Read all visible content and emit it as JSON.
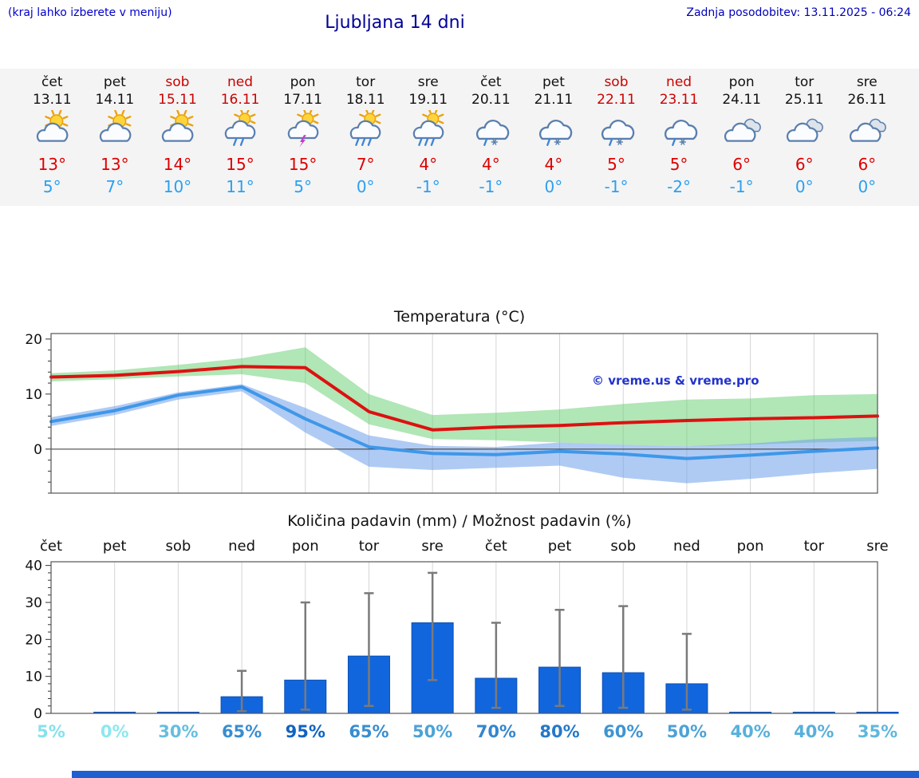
{
  "header": {
    "left_note": "(kraj lahko izberete v meniju)",
    "title": "Ljubljana 14 dni",
    "last_update": "Zadnja posodobitev: 13.11.2025 - 06:24"
  },
  "colors": {
    "header_blue": "#0000cc",
    "title_blue": "#000099",
    "weekend_red": "#cc0000",
    "tmax_red": "#dd0000",
    "tmin_blue": "#2aa0f0",
    "strip_bg": "#f4f4f4",
    "band_max_green": "rgba(100,205,110,0.50)",
    "band_min_blue": "rgba(110,160,235,0.55)",
    "bar_blue": "#1266dd",
    "bar_edge": "#0b4fb3",
    "whisker_gray": "#7a7a7a",
    "prob_low": "#8ce8ee",
    "prob_high": "#0b5cc0",
    "watermark_blue": "#2233cc",
    "footer_blue": "#1f5fd0"
  },
  "forecast": {
    "days": [
      {
        "name": "čet",
        "date": "13.11",
        "weekend": false,
        "icon": "partly-sunny",
        "tmax": "13°",
        "tmin": "5°"
      },
      {
        "name": "pet",
        "date": "14.11",
        "weekend": false,
        "icon": "partly-sunny",
        "tmax": "13°",
        "tmin": "7°"
      },
      {
        "name": "sob",
        "date": "15.11",
        "weekend": true,
        "icon": "partly-sunny",
        "tmax": "14°",
        "tmin": "10°"
      },
      {
        "name": "ned",
        "date": "16.11",
        "weekend": true,
        "icon": "sun-rain",
        "tmax": "15°",
        "tmin": "11°"
      },
      {
        "name": "pon",
        "date": "17.11",
        "weekend": false,
        "icon": "sun-storm",
        "tmax": "15°",
        "tmin": "5°"
      },
      {
        "name": "tor",
        "date": "18.11",
        "weekend": false,
        "icon": "sun-heavy-rain",
        "tmax": "7°",
        "tmin": "0°"
      },
      {
        "name": "sre",
        "date": "19.11",
        "weekend": false,
        "icon": "sun-heavy-rain",
        "tmax": "4°",
        "tmin": "-1°"
      },
      {
        "name": "čet",
        "date": "20.11",
        "weekend": false,
        "icon": "sleet",
        "tmax": "4°",
        "tmin": "-1°"
      },
      {
        "name": "pet",
        "date": "21.11",
        "weekend": false,
        "icon": "sleet",
        "tmax": "4°",
        "tmin": "0°"
      },
      {
        "name": "sob",
        "date": "22.11",
        "weekend": true,
        "icon": "sleet",
        "tmax": "5°",
        "tmin": "-1°"
      },
      {
        "name": "ned",
        "date": "23.11",
        "weekend": true,
        "icon": "sleet",
        "tmax": "5°",
        "tmin": "-2°"
      },
      {
        "name": "pon",
        "date": "24.11",
        "weekend": false,
        "icon": "cloudy",
        "tmax": "6°",
        "tmin": "-1°"
      },
      {
        "name": "tor",
        "date": "25.11",
        "weekend": false,
        "icon": "cloudy",
        "tmax": "6°",
        "tmin": "0°"
      },
      {
        "name": "sre",
        "date": "26.11",
        "weekend": false,
        "icon": "cloudy",
        "tmax": "6°",
        "tmin": "0°"
      }
    ]
  },
  "chart_data": [
    {
      "type": "line",
      "title": "Temperatura (°C)",
      "categories": [
        "čet",
        "pet",
        "sob",
        "ned",
        "pon",
        "tor",
        "sre",
        "čet",
        "pet",
        "sob",
        "ned",
        "pon",
        "tor",
        "sre"
      ],
      "ylim": [
        -8,
        21
      ],
      "yticks": [
        0,
        10,
        20
      ],
      "grid": "vertical-per-day",
      "watermark": "© vreme.us & vreme.pro",
      "series": [
        {
          "name": "temperatura-max",
          "color": "#dd1111",
          "values": [
            13.1,
            13.4,
            14.1,
            15.0,
            14.8,
            6.8,
            3.5,
            4.0,
            4.3,
            4.8,
            5.2,
            5.5,
            5.7,
            6.0
          ]
        },
        {
          "name": "temperatura-min",
          "color": "#3f97e8",
          "values": [
            5.0,
            7.0,
            9.8,
            11.3,
            5.5,
            0.4,
            -0.8,
            -1.0,
            -0.4,
            -0.9,
            -1.7,
            -1.1,
            -0.4,
            0.2
          ]
        }
      ],
      "bands": [
        {
          "name": "max-range",
          "color": "rgba(100,205,110,0.50)",
          "upper": [
            13.8,
            14.3,
            15.3,
            16.5,
            18.5,
            10.0,
            6.2,
            6.6,
            7.2,
            8.2,
            9.0,
            9.2,
            9.8,
            10.0
          ],
          "lower": [
            12.3,
            12.7,
            13.2,
            13.6,
            12.0,
            4.5,
            1.8,
            1.6,
            1.2,
            0.8,
            0.5,
            0.8,
            1.2,
            1.5
          ]
        },
        {
          "name": "min-range",
          "color": "rgba(110,160,235,0.55)",
          "upper": [
            5.8,
            7.8,
            10.3,
            11.8,
            7.5,
            2.5,
            0.6,
            0.4,
            1.2,
            0.8,
            0.5,
            1.0,
            1.8,
            2.2
          ],
          "lower": [
            4.2,
            6.2,
            9.0,
            10.5,
            3.0,
            -3.2,
            -3.8,
            -3.4,
            -3.0,
            -5.2,
            -6.2,
            -5.4,
            -4.4,
            -3.6
          ]
        }
      ]
    },
    {
      "type": "bar",
      "title": "Količina padavin (mm) / Možnost padavin (%)",
      "categories": [
        "čet",
        "pet",
        "sob",
        "ned",
        "pon",
        "tor",
        "sre",
        "čet",
        "pet",
        "sob",
        "ned",
        "pon",
        "tor",
        "sre"
      ],
      "ylim": [
        0,
        41
      ],
      "yticks": [
        0,
        10,
        20,
        30,
        40
      ],
      "values": [
        0,
        0.1,
        0.2,
        4.5,
        9.0,
        15.5,
        24.5,
        9.5,
        12.5,
        11.0,
        8.0,
        0.1,
        0.2,
        0.2
      ],
      "whisker_high": [
        0,
        0,
        0,
        11.5,
        30.0,
        32.5,
        38.0,
        24.5,
        28.0,
        29.0,
        21.5,
        0,
        0,
        0
      ],
      "whisker_low": [
        0,
        0,
        0,
        0.6,
        1.0,
        2.0,
        9.0,
        1.5,
        2.0,
        1.5,
        1.0,
        0,
        0,
        0
      ],
      "probabilities": [
        {
          "label": "5%",
          "value": 5
        },
        {
          "label": "0%",
          "value": 0
        },
        {
          "label": "30%",
          "value": 30
        },
        {
          "label": "65%",
          "value": 65
        },
        {
          "label": "95%",
          "value": 95
        },
        {
          "label": "65%",
          "value": 65
        },
        {
          "label": "50%",
          "value": 50
        },
        {
          "label": "70%",
          "value": 70
        },
        {
          "label": "80%",
          "value": 80
        },
        {
          "label": "60%",
          "value": 60
        },
        {
          "label": "50%",
          "value": 50
        },
        {
          "label": "40%",
          "value": 40
        },
        {
          "label": "40%",
          "value": 40
        },
        {
          "label": "35%",
          "value": 35
        }
      ]
    }
  ]
}
